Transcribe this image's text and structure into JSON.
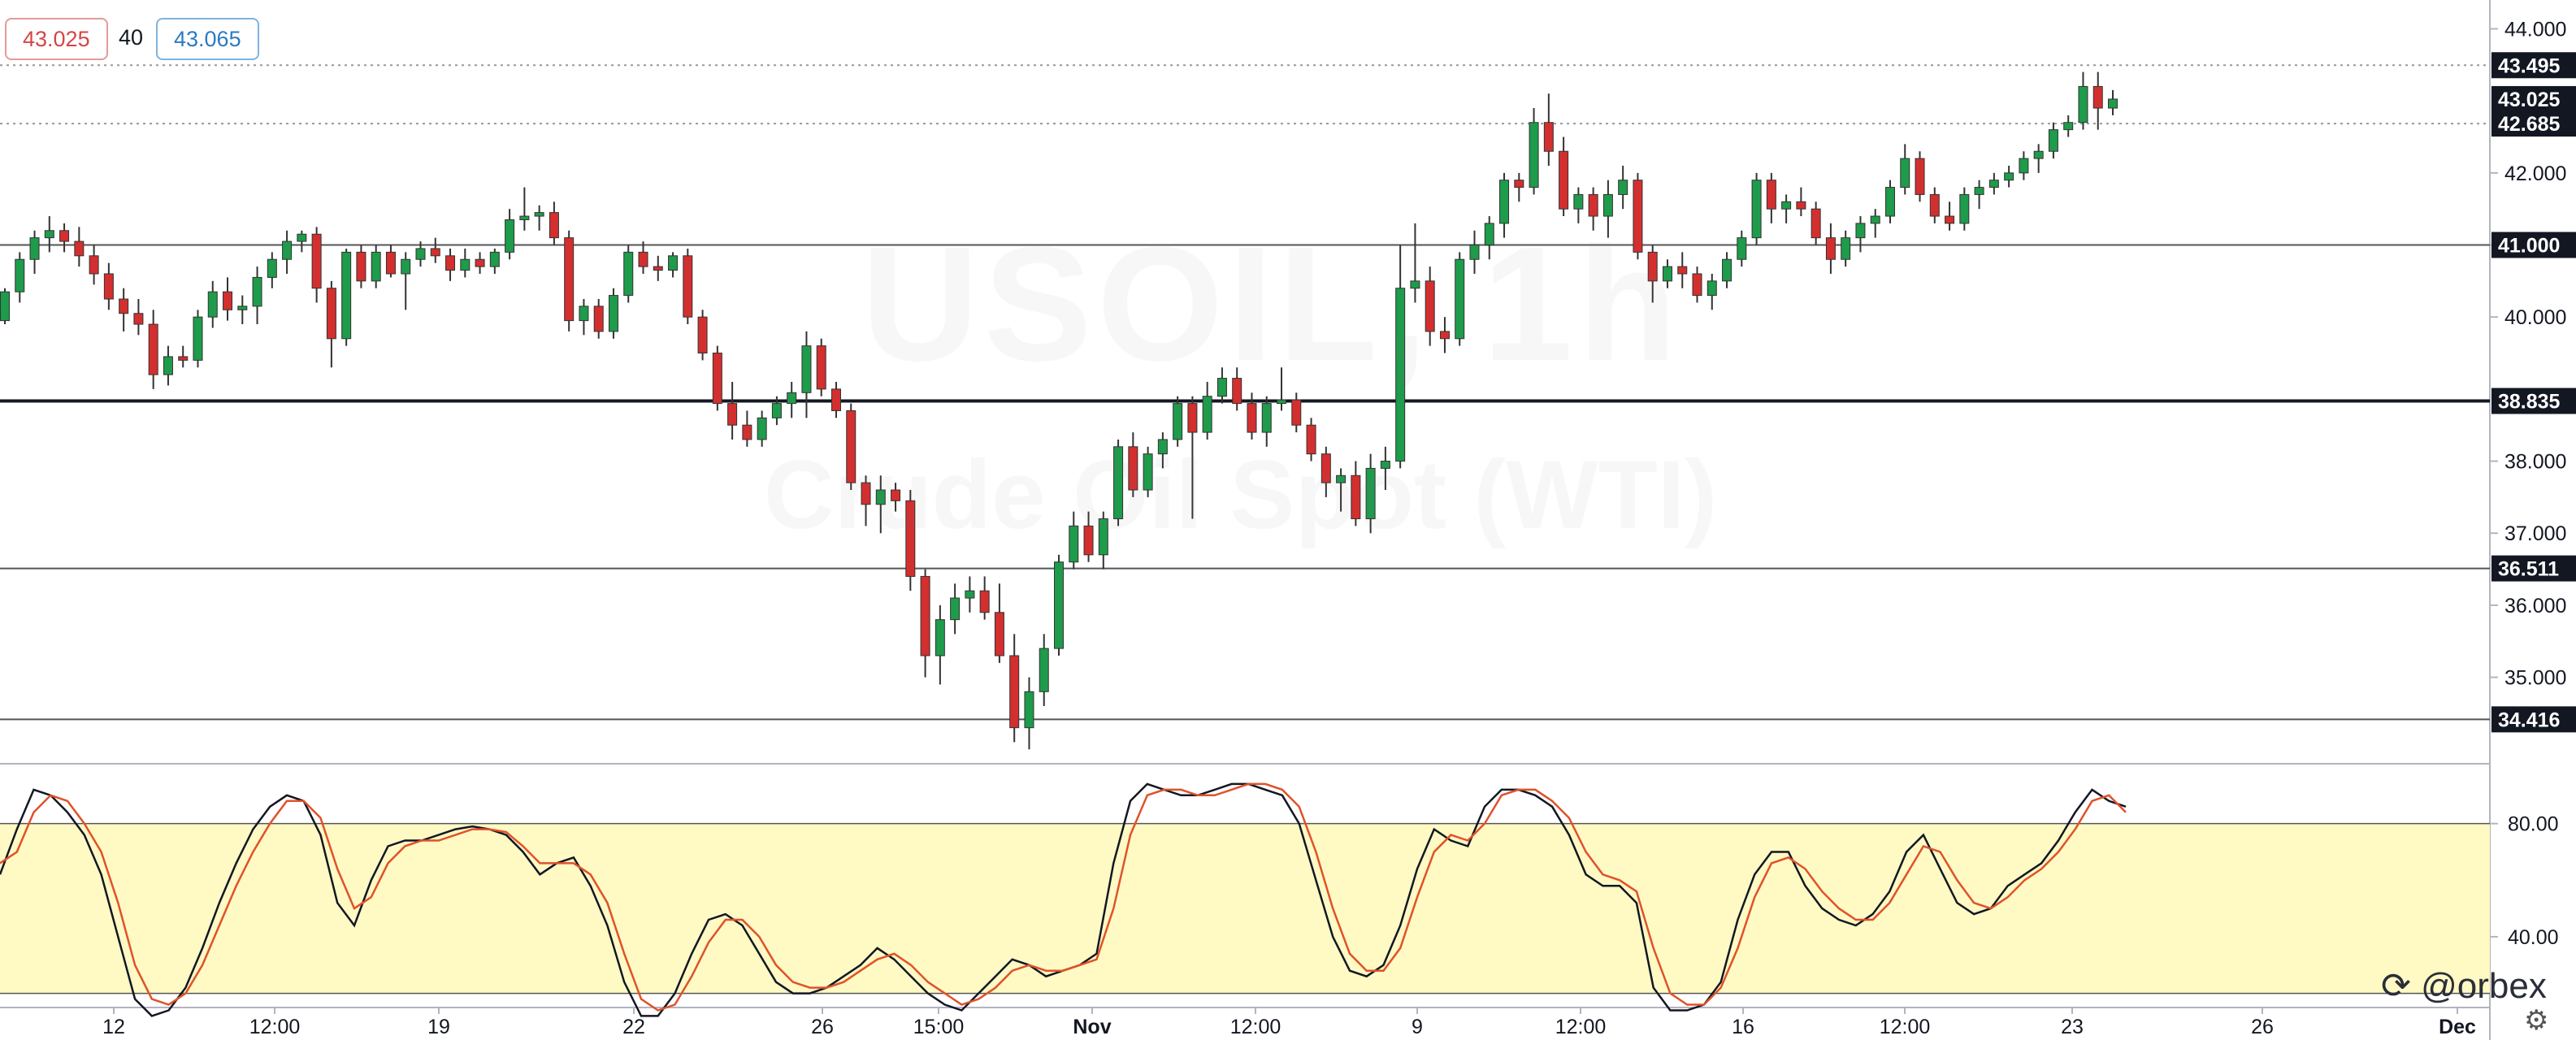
{
  "quote": {
    "bid": "43.025",
    "spread": "40",
    "ask": "43.065"
  },
  "watermark": {
    "title": "USOIL, 1h",
    "subtitle": "Crude Oil Spot (WTI)"
  },
  "branding": {
    "logo_text": "@orbex"
  },
  "colors": {
    "up": "#26a69a",
    "down": "#ef5350",
    "body_up": "#1e9b4b",
    "body_down": "#d32f2f",
    "zone_fill": "#fff9c4",
    "k_line": "#131722",
    "d_line": "#e0522b"
  },
  "chart_data": [
    {
      "type": "candlestick",
      "title": "",
      "ylim": [
        33.8,
        44.4
      ],
      "y_ticks": [
        "44.000",
        "42.000",
        "41.000",
        "40.000",
        "38.000",
        "37.000",
        "36.000",
        "35.000"
      ],
      "x_ticks": [
        "12",
        "12:00",
        "19",
        "22",
        "26",
        "15:00",
        "Nov",
        "12:00",
        "9",
        "12:00",
        "16",
        "12:00",
        "23",
        "26",
        "Dec"
      ],
      "level_labels": [
        "43.495",
        "43.025",
        "42.685",
        "41.000",
        "38.835",
        "36.511",
        "34.416"
      ],
      "horizontal_levels": [
        {
          "value": 43.495,
          "label": "43.495",
          "style": "dotted"
        },
        {
          "value": 42.685,
          "label": "42.685",
          "style": "dotted"
        },
        {
          "value": 41.0,
          "label": "41.000",
          "style": "solid"
        },
        {
          "value": 38.835,
          "label": "38.835",
          "style": "solid-thick"
        },
        {
          "value": 36.511,
          "label": "36.511",
          "style": "solid"
        },
        {
          "value": 34.416,
          "label": "34.416",
          "style": "solid"
        }
      ],
      "last_price": {
        "value": 43.025,
        "label": "43.025"
      },
      "candles": [
        [
          39.95,
          40.4,
          39.9,
          40.35
        ],
        [
          40.35,
          40.9,
          40.2,
          40.8
        ],
        [
          40.8,
          41.2,
          40.6,
          41.1
        ],
        [
          41.1,
          41.4,
          40.9,
          41.2
        ],
        [
          41.2,
          41.3,
          40.9,
          41.05
        ],
        [
          41.05,
          41.25,
          40.7,
          40.85
        ],
        [
          40.85,
          41.0,
          40.45,
          40.6
        ],
        [
          40.6,
          40.75,
          40.1,
          40.25
        ],
        [
          40.25,
          40.4,
          39.8,
          40.05
        ],
        [
          40.05,
          40.25,
          39.75,
          39.9
        ],
        [
          39.9,
          40.1,
          39.0,
          39.2
        ],
        [
          39.2,
          39.6,
          39.05,
          39.45
        ],
        [
          39.45,
          39.6,
          39.3,
          39.4
        ],
        [
          39.4,
          40.1,
          39.3,
          40.0
        ],
        [
          40.0,
          40.5,
          39.85,
          40.35
        ],
        [
          40.35,
          40.55,
          39.95,
          40.1
        ],
        [
          40.1,
          40.3,
          39.9,
          40.15
        ],
        [
          40.15,
          40.7,
          39.9,
          40.55
        ],
        [
          40.55,
          40.9,
          40.4,
          40.8
        ],
        [
          40.8,
          41.2,
          40.6,
          41.05
        ],
        [
          41.05,
          41.2,
          40.9,
          41.15
        ],
        [
          41.15,
          41.25,
          40.2,
          40.4
        ],
        [
          40.4,
          40.5,
          39.3,
          39.7
        ],
        [
          39.7,
          40.95,
          39.6,
          40.9
        ],
        [
          40.9,
          41.0,
          40.4,
          40.5
        ],
        [
          40.5,
          41.0,
          40.4,
          40.9
        ],
        [
          40.9,
          41.0,
          40.55,
          40.6
        ],
        [
          40.6,
          40.9,
          40.1,
          40.8
        ],
        [
          40.8,
          41.05,
          40.7,
          40.95
        ],
        [
          40.95,
          41.1,
          40.75,
          40.85
        ],
        [
          40.85,
          40.95,
          40.5,
          40.65
        ],
        [
          40.65,
          40.95,
          40.55,
          40.8
        ],
        [
          40.8,
          40.9,
          40.6,
          40.7
        ],
        [
          40.7,
          40.95,
          40.6,
          40.9
        ],
        [
          40.9,
          41.5,
          40.8,
          41.35
        ],
        [
          41.35,
          41.8,
          41.2,
          41.4
        ],
        [
          41.4,
          41.55,
          41.2,
          41.45
        ],
        [
          41.45,
          41.6,
          41.0,
          41.1
        ],
        [
          41.1,
          41.2,
          39.8,
          39.95
        ],
        [
          39.95,
          40.25,
          39.75,
          40.15
        ],
        [
          40.15,
          40.25,
          39.7,
          39.8
        ],
        [
          39.8,
          40.4,
          39.7,
          40.3
        ],
        [
          40.3,
          41.0,
          40.2,
          40.9
        ],
        [
          40.9,
          41.05,
          40.6,
          40.7
        ],
        [
          40.7,
          40.85,
          40.5,
          40.65
        ],
        [
          40.65,
          40.9,
          40.55,
          40.85
        ],
        [
          40.85,
          40.95,
          39.9,
          40.0
        ],
        [
          40.0,
          40.1,
          39.4,
          39.5
        ],
        [
          39.5,
          39.6,
          38.7,
          38.8
        ],
        [
          38.8,
          39.1,
          38.3,
          38.5
        ],
        [
          38.5,
          38.7,
          38.2,
          38.3
        ],
        [
          38.3,
          38.7,
          38.2,
          38.6
        ],
        [
          38.6,
          38.9,
          38.5,
          38.8
        ],
        [
          38.8,
          39.1,
          38.6,
          38.95
        ],
        [
          38.95,
          39.8,
          38.6,
          39.6
        ],
        [
          39.6,
          39.7,
          38.9,
          39.0
        ],
        [
          39.0,
          39.1,
          38.6,
          38.7
        ],
        [
          38.7,
          38.8,
          37.6,
          37.7
        ],
        [
          37.7,
          37.8,
          37.1,
          37.4
        ],
        [
          37.4,
          37.8,
          37.0,
          37.6
        ],
        [
          37.6,
          37.7,
          37.3,
          37.45
        ],
        [
          37.45,
          37.6,
          36.2,
          36.4
        ],
        [
          36.4,
          36.5,
          35.0,
          35.3
        ],
        [
          35.3,
          36.0,
          34.9,
          35.8
        ],
        [
          35.8,
          36.3,
          35.6,
          36.1
        ],
        [
          36.1,
          36.4,
          35.9,
          36.2
        ],
        [
          36.2,
          36.4,
          35.8,
          35.9
        ],
        [
          35.9,
          36.3,
          35.2,
          35.3
        ],
        [
          35.3,
          35.6,
          34.1,
          34.3
        ],
        [
          34.3,
          35.0,
          34.0,
          34.8
        ],
        [
          34.8,
          35.6,
          34.6,
          35.4
        ],
        [
          35.4,
          36.7,
          35.3,
          36.6
        ],
        [
          36.6,
          37.3,
          36.5,
          37.1
        ],
        [
          37.1,
          37.3,
          36.6,
          36.7
        ],
        [
          36.7,
          37.3,
          36.5,
          37.2
        ],
        [
          37.2,
          38.3,
          37.1,
          38.2
        ],
        [
          38.2,
          38.4,
          37.5,
          37.6
        ],
        [
          37.6,
          38.2,
          37.5,
          38.1
        ],
        [
          38.1,
          38.4,
          37.9,
          38.3
        ],
        [
          38.3,
          38.9,
          38.2,
          38.8
        ],
        [
          38.8,
          38.9,
          37.2,
          38.4
        ],
        [
          38.4,
          39.1,
          38.3,
          38.9
        ],
        [
          38.9,
          39.3,
          38.8,
          39.15
        ],
        [
          39.15,
          39.3,
          38.7,
          38.8
        ],
        [
          38.8,
          38.95,
          38.3,
          38.4
        ],
        [
          38.4,
          38.9,
          38.2,
          38.8
        ],
        [
          38.8,
          39.3,
          38.7,
          38.85
        ],
        [
          38.85,
          38.95,
          38.4,
          38.5
        ],
        [
          38.5,
          38.6,
          38.0,
          38.1
        ],
        [
          38.1,
          38.2,
          37.5,
          37.7
        ],
        [
          37.7,
          37.9,
          37.3,
          37.8
        ],
        [
          37.8,
          38.0,
          37.1,
          37.2
        ],
        [
          37.2,
          38.1,
          37.0,
          37.9
        ],
        [
          37.9,
          38.2,
          37.6,
          38.0
        ],
        [
          38.0,
          41.0,
          37.9,
          40.4
        ],
        [
          40.4,
          41.3,
          40.2,
          40.5
        ],
        [
          40.5,
          40.7,
          39.6,
          39.8
        ],
        [
          39.8,
          40.0,
          39.5,
          39.7
        ],
        [
          39.7,
          40.9,
          39.6,
          40.8
        ],
        [
          40.8,
          41.2,
          40.6,
          41.0
        ],
        [
          41.0,
          41.4,
          40.8,
          41.3
        ],
        [
          41.3,
          42.0,
          41.1,
          41.9
        ],
        [
          41.9,
          42.0,
          41.6,
          41.8
        ],
        [
          41.8,
          42.9,
          41.7,
          42.7
        ],
        [
          42.7,
          43.1,
          42.1,
          42.3
        ],
        [
          42.3,
          42.5,
          41.4,
          41.5
        ],
        [
          41.5,
          41.8,
          41.3,
          41.7
        ],
        [
          41.7,
          41.8,
          41.2,
          41.4
        ],
        [
          41.4,
          41.9,
          41.1,
          41.7
        ],
        [
          41.7,
          42.1,
          41.5,
          41.9
        ],
        [
          41.9,
          42.0,
          40.8,
          40.9
        ],
        [
          40.9,
          41.0,
          40.2,
          40.5
        ],
        [
          40.5,
          40.8,
          40.4,
          40.7
        ],
        [
          40.7,
          40.9,
          40.4,
          40.6
        ],
        [
          40.6,
          40.7,
          40.2,
          40.3
        ],
        [
          40.3,
          40.6,
          40.1,
          40.5
        ],
        [
          40.5,
          40.9,
          40.4,
          40.8
        ],
        [
          40.8,
          41.2,
          40.7,
          41.1
        ],
        [
          41.1,
          42.0,
          41.0,
          41.9
        ],
        [
          41.9,
          42.0,
          41.3,
          41.5
        ],
        [
          41.5,
          41.7,
          41.3,
          41.6
        ],
        [
          41.6,
          41.8,
          41.4,
          41.5
        ],
        [
          41.5,
          41.6,
          41.0,
          41.1
        ],
        [
          41.1,
          41.3,
          40.6,
          40.8
        ],
        [
          40.8,
          41.2,
          40.7,
          41.1
        ],
        [
          41.1,
          41.4,
          40.9,
          41.3
        ],
        [
          41.3,
          41.5,
          41.1,
          41.4
        ],
        [
          41.4,
          41.9,
          41.3,
          41.8
        ],
        [
          41.8,
          42.4,
          41.7,
          42.2
        ],
        [
          42.2,
          42.3,
          41.6,
          41.7
        ],
        [
          41.7,
          41.8,
          41.3,
          41.4
        ],
        [
          41.4,
          41.6,
          41.2,
          41.3
        ],
        [
          41.3,
          41.8,
          41.2,
          41.7
        ],
        [
          41.7,
          41.9,
          41.5,
          41.8
        ],
        [
          41.8,
          42.0,
          41.7,
          41.9
        ],
        [
          41.9,
          42.1,
          41.8,
          42.0
        ],
        [
          42.0,
          42.3,
          41.9,
          42.2
        ],
        [
          42.2,
          42.4,
          42.0,
          42.3
        ],
        [
          42.3,
          42.7,
          42.2,
          42.6
        ],
        [
          42.6,
          42.8,
          42.5,
          42.7
        ],
        [
          42.7,
          43.4,
          42.6,
          43.2
        ],
        [
          43.2,
          43.4,
          42.6,
          42.9
        ],
        [
          42.9,
          43.15,
          42.8,
          43.025
        ]
      ]
    },
    {
      "type": "line",
      "title": "",
      "ylim": [
        15,
        100
      ],
      "y_ticks": [
        "80.00",
        "40.00"
      ],
      "band": [
        20,
        80
      ],
      "series": [
        {
          "values": [
            62,
            78,
            92,
            90,
            84,
            76,
            62,
            40,
            18,
            12,
            14,
            22,
            36,
            52,
            66,
            78,
            86,
            90,
            88,
            76,
            52,
            44,
            60,
            72,
            74,
            74,
            76,
            78,
            79,
            78,
            76,
            70,
            62,
            66,
            68,
            58,
            44,
            24,
            12,
            12,
            20,
            34,
            46,
            48,
            44,
            34,
            24,
            20,
            20,
            22,
            26,
            30,
            36,
            32,
            26,
            20,
            16,
            14,
            20,
            26,
            32,
            30,
            26,
            28,
            30,
            34,
            66,
            88,
            94,
            92,
            90,
            90,
            92,
            94,
            94,
            92,
            90,
            80,
            60,
            40,
            28,
            26,
            30,
            44,
            64,
            78,
            74,
            72,
            86,
            92,
            92,
            90,
            86,
            76,
            62,
            58,
            58,
            52,
            22,
            14,
            14,
            16,
            24,
            46,
            62,
            70,
            70,
            58,
            50,
            46,
            44,
            48,
            56,
            70,
            76,
            64,
            52,
            48,
            50,
            58,
            62,
            66,
            74,
            84,
            92,
            88,
            86
          ]
        },
        {
          "values": [
            66,
            70,
            84,
            90,
            88,
            80,
            70,
            52,
            30,
            18,
            16,
            20,
            30,
            44,
            58,
            70,
            80,
            88,
            88,
            82,
            64,
            50,
            54,
            66,
            72,
            74,
            74,
            76,
            78,
            78,
            77,
            72,
            66,
            66,
            66,
            62,
            52,
            34,
            18,
            14,
            16,
            26,
            38,
            46,
            46,
            40,
            30,
            24,
            22,
            22,
            24,
            28,
            32,
            34,
            30,
            24,
            20,
            16,
            18,
            22,
            28,
            30,
            28,
            28,
            30,
            32,
            50,
            76,
            90,
            92,
            92,
            90,
            90,
            92,
            94,
            94,
            92,
            86,
            70,
            50,
            34,
            28,
            28,
            36,
            54,
            70,
            76,
            74,
            80,
            90,
            92,
            92,
            88,
            82,
            70,
            62,
            60,
            56,
            36,
            20,
            16,
            16,
            22,
            36,
            54,
            66,
            68,
            64,
            56,
            50,
            46,
            46,
            52,
            62,
            72,
            70,
            60,
            52,
            50,
            54,
            60,
            64,
            70,
            78,
            88,
            90,
            84
          ]
        }
      ]
    }
  ]
}
